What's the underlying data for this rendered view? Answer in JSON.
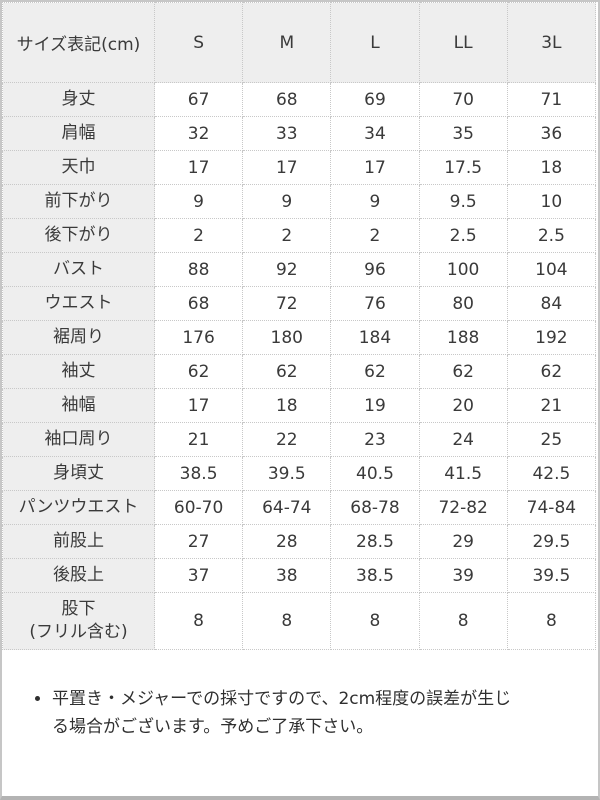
{
  "table": {
    "unit_header": "サイズ表記(cm)",
    "size_columns": [
      "S",
      "M",
      "L",
      "LL",
      "3L"
    ],
    "rows": [
      {
        "label": "身丈",
        "values": [
          "67",
          "68",
          "69",
          "70",
          "71"
        ]
      },
      {
        "label": "肩幅",
        "values": [
          "32",
          "33",
          "34",
          "35",
          "36"
        ]
      },
      {
        "label": "天巾",
        "values": [
          "17",
          "17",
          "17",
          "17.5",
          "18"
        ]
      },
      {
        "label": "前下がり",
        "values": [
          "9",
          "9",
          "9",
          "9.5",
          "10"
        ]
      },
      {
        "label": "後下がり",
        "values": [
          "2",
          "2",
          "2",
          "2.5",
          "2.5"
        ]
      },
      {
        "label": "バスト",
        "values": [
          "88",
          "92",
          "96",
          "100",
          "104"
        ]
      },
      {
        "label": "ウエスト",
        "values": [
          "68",
          "72",
          "76",
          "80",
          "84"
        ]
      },
      {
        "label": "裾周り",
        "values": [
          "176",
          "180",
          "184",
          "188",
          "192"
        ]
      },
      {
        "label": "袖丈",
        "values": [
          "62",
          "62",
          "62",
          "62",
          "62"
        ]
      },
      {
        "label": "袖幅",
        "values": [
          "17",
          "18",
          "19",
          "20",
          "21"
        ]
      },
      {
        "label": "袖口周り",
        "values": [
          "21",
          "22",
          "23",
          "24",
          "25"
        ]
      },
      {
        "label": "身頃丈",
        "values": [
          "38.5",
          "39.5",
          "40.5",
          "41.5",
          "42.5"
        ]
      },
      {
        "label": "パンツウエスト",
        "values": [
          "60-70",
          "64-74",
          "68-78",
          "72-82",
          "74-84"
        ]
      },
      {
        "label": "前股上",
        "values": [
          "27",
          "28",
          "28.5",
          "29",
          "29.5"
        ]
      },
      {
        "label": "後股上",
        "values": [
          "37",
          "38",
          "38.5",
          "39",
          "39.5"
        ]
      },
      {
        "label": "股下\n(フリル含む)",
        "values": [
          "8",
          "8",
          "8",
          "8",
          "8"
        ]
      }
    ]
  },
  "note": {
    "bullet_text": "平置き・メジャーでの採寸ですので、2cm程度の誤差が生じる場合がございます。予めご了承下さい。"
  },
  "colors": {
    "header_bg": "#eeeeee",
    "cell_border": "#c8c8c8",
    "frame_border": "#c6c6c6",
    "text": "#3a3a3a"
  }
}
